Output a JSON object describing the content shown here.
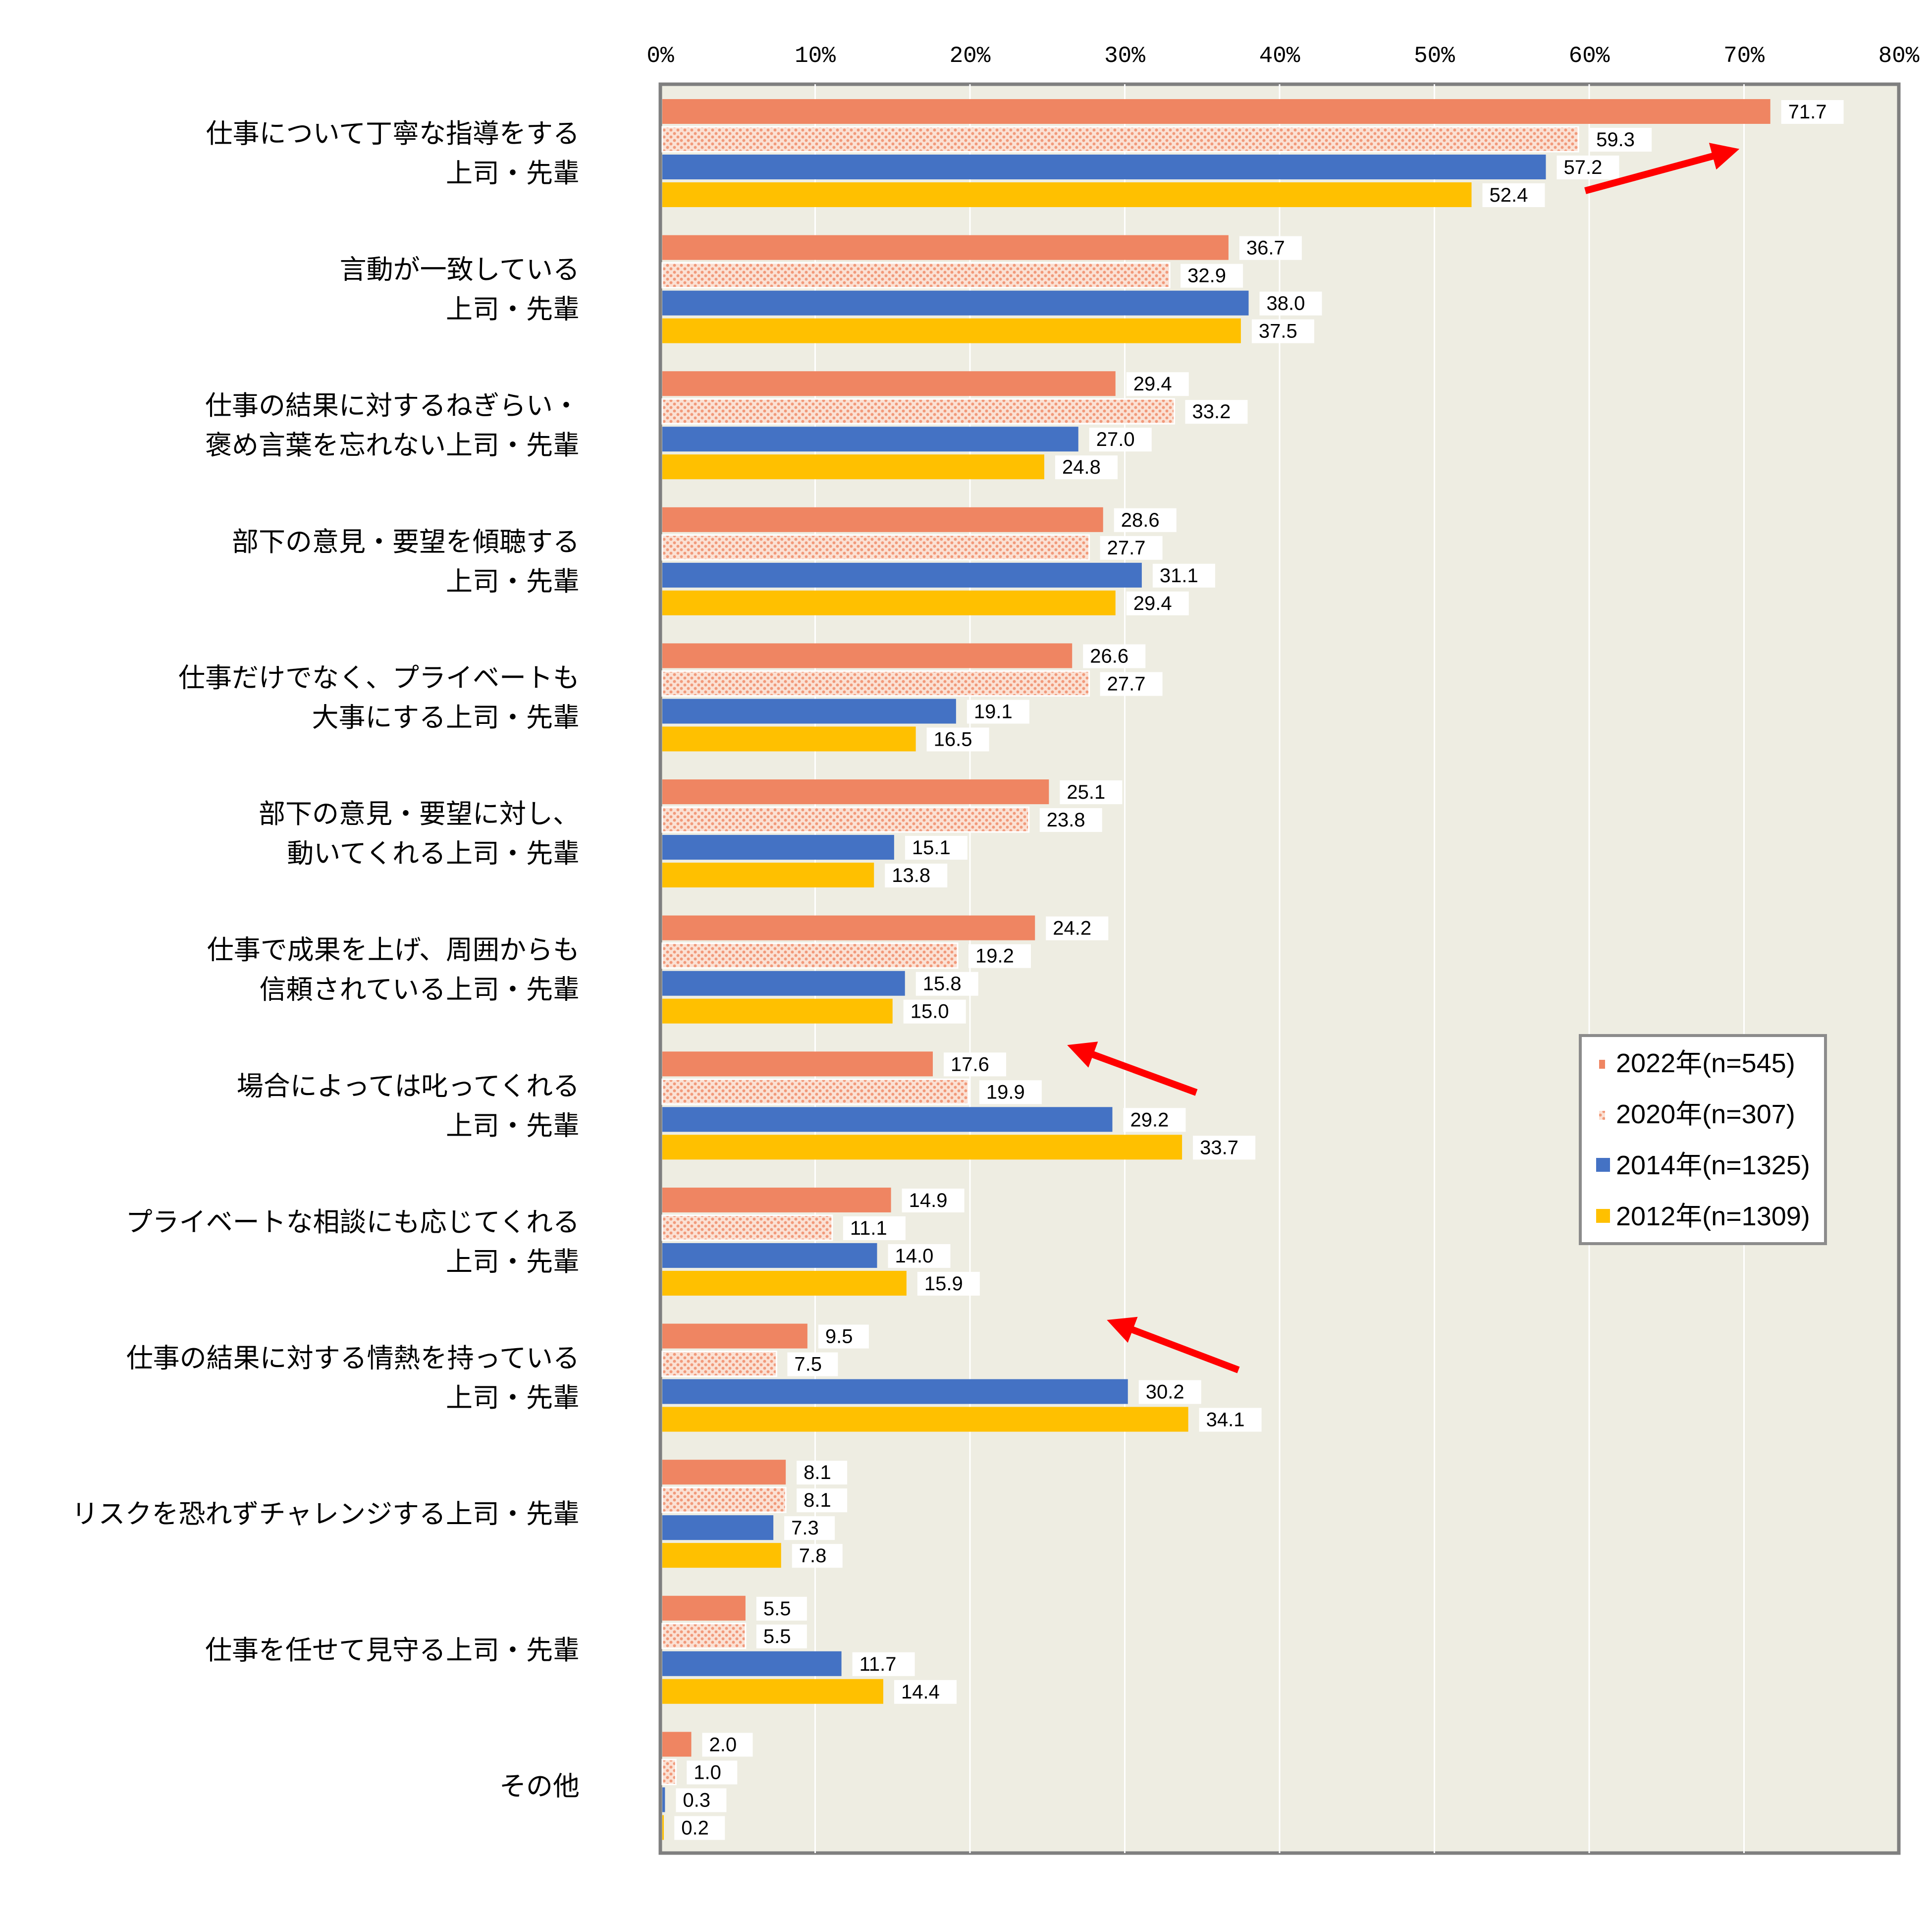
{
  "chart_data": {
    "type": "bar",
    "orientation": "horizontal",
    "xlim": [
      0,
      80
    ],
    "x_ticks": [
      "0%",
      "10%",
      "20%",
      "30%",
      "40%",
      "50%",
      "60%",
      "70%",
      "80%"
    ],
    "grid": true,
    "legend_position": "right",
    "categories": [
      [
        "仕事について丁寧な指導をする",
        "上司・先輩"
      ],
      [
        "言動が一致している",
        "上司・先輩"
      ],
      [
        "仕事の結果に対するねぎらい・",
        "褒め言葉を忘れない上司・先輩"
      ],
      [
        "部下の意見・要望を傾聴する",
        "上司・先輩"
      ],
      [
        "仕事だけでなく、プライベートも",
        "大事にする上司・先輩"
      ],
      [
        "部下の意見・要望に対し、",
        "動いてくれる上司・先輩"
      ],
      [
        "仕事で成果を上げ、周囲からも",
        "信頼されている上司・先輩"
      ],
      [
        "場合によっては叱ってくれる",
        "上司・先輩"
      ],
      [
        "プライベートな相談にも応じてくれる",
        "上司・先輩"
      ],
      [
        "仕事の結果に対する情熱を持っている",
        "上司・先輩"
      ],
      [
        "リスクを恐れずチャレンジする上司・先輩"
      ],
      [
        "仕事を任せて見守る上司・先輩"
      ],
      [
        "その他"
      ]
    ],
    "series": [
      {
        "name": "2022年(n=545)",
        "color": "#ef8562",
        "pattern": "solid",
        "values": [
          71.7,
          36.7,
          29.4,
          28.6,
          26.6,
          25.1,
          24.2,
          17.6,
          14.9,
          9.5,
          8.1,
          5.5,
          2.0
        ]
      },
      {
        "name": "2020年(n=307)",
        "color": "#f6b49a",
        "pattern": "dotted",
        "values": [
          59.3,
          32.9,
          33.2,
          27.7,
          27.7,
          23.8,
          19.2,
          19.9,
          11.1,
          7.5,
          8.1,
          5.5,
          1.0
        ]
      },
      {
        "name": "2014年(n=1325)",
        "color": "#4472c4",
        "pattern": "solid",
        "values": [
          57.2,
          38.0,
          27.0,
          31.1,
          19.1,
          15.1,
          15.8,
          29.2,
          14.0,
          30.2,
          7.3,
          11.7,
          0.3
        ]
      },
      {
        "name": "2012年(n=1309)",
        "color": "#ffc000",
        "pattern": "solid",
        "values": [
          52.4,
          37.5,
          24.8,
          29.4,
          16.5,
          13.8,
          15.0,
          33.7,
          15.9,
          34.1,
          7.8,
          14.4,
          0.2
        ]
      }
    ],
    "value_labels": [
      [
        "71.7",
        "59.3",
        "57.2",
        "52.4"
      ],
      [
        "36.7",
        "32.9",
        "38.0",
        "37.5"
      ],
      [
        "29.4",
        "33.2",
        "27.0",
        "24.8"
      ],
      [
        "28.6",
        "27.7",
        "31.1",
        "29.4"
      ],
      [
        "26.6",
        "27.7",
        "19.1",
        "16.5"
      ],
      [
        "25.1",
        "23.8",
        "15.1",
        "13.8"
      ],
      [
        "24.2",
        "19.2",
        "15.8",
        "15.0"
      ],
      [
        "17.6",
        "19.9",
        "29.2",
        "33.7"
      ],
      [
        "14.9",
        "11.1",
        "14.0",
        "15.9"
      ],
      [
        "9.5",
        "7.5",
        "30.2",
        "34.1"
      ],
      [
        "8.1",
        "8.1",
        "7.3",
        "7.8"
      ],
      [
        "5.5",
        "5.5",
        "11.7",
        "14.4"
      ],
      [
        "2.0",
        "1.0",
        "0.3",
        "0.2"
      ]
    ],
    "annotations": [
      {
        "type": "arrow",
        "direction": "up-right",
        "color": "#ff0000",
        "category_index": 0
      },
      {
        "type": "arrow",
        "direction": "up-left",
        "color": "#ff0000",
        "category_index": 7
      },
      {
        "type": "arrow",
        "direction": "up-left",
        "color": "#ff0000",
        "category_index": 9
      }
    ],
    "plot_background": "#eeede2",
    "frame_color": "#7f7f7f"
  }
}
